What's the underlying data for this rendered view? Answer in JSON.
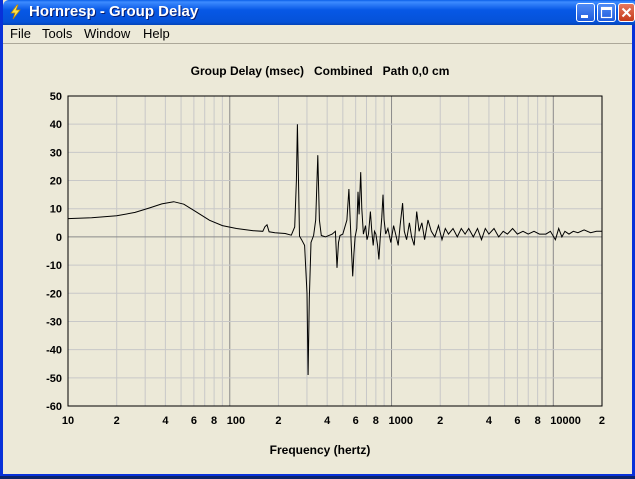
{
  "window": {
    "title": "Hornresp - Group Delay"
  },
  "menu": {
    "items": [
      "File",
      "Tools",
      "Window",
      "Help"
    ]
  },
  "colors": {
    "titlebar": "#0554E0",
    "window_bg": "#ECE9D8",
    "plot_bg": "#FFFFFF",
    "trace": "#000000",
    "grid": "#C8C8C8"
  },
  "icons": {
    "app": "lightning-bolt-icon",
    "minimize": "minimize-icon",
    "maximize": "maximize-icon",
    "close": "close-icon"
  },
  "chart_data": {
    "type": "line",
    "title": "Group Delay (msec)   Combined   Path 0,0 cm",
    "xlabel": "Frequency (hertz)",
    "ylabel": "",
    "x_scale": "log",
    "xlim": [
      10,
      20000
    ],
    "ylim": [
      -60,
      50
    ],
    "grid": true,
    "y_ticks": [
      50,
      40,
      30,
      20,
      10,
      0,
      -10,
      -20,
      -30,
      -40,
      -50,
      -60
    ],
    "x_tick_labels": [
      {
        "x": 10,
        "label": "10"
      },
      {
        "x": 20,
        "label": "2"
      },
      {
        "x": 40,
        "label": "4"
      },
      {
        "x": 60,
        "label": "6"
      },
      {
        "x": 80,
        "label": "8"
      },
      {
        "x": 100,
        "label": "100"
      },
      {
        "x": 200,
        "label": "2"
      },
      {
        "x": 400,
        "label": "4"
      },
      {
        "x": 600,
        "label": "6"
      },
      {
        "x": 800,
        "label": "8"
      },
      {
        "x": 1000,
        "label": "1000"
      },
      {
        "x": 2000,
        "label": "2"
      },
      {
        "x": 4000,
        "label": "4"
      },
      {
        "x": 6000,
        "label": "6"
      },
      {
        "x": 8000,
        "label": "8"
      },
      {
        "x": 10000,
        "label": "10000"
      },
      {
        "x": 20000,
        "label": "2"
      }
    ],
    "series": [
      {
        "points": [
          [
            10,
            6.5
          ],
          [
            14,
            6.8
          ],
          [
            20,
            7.5
          ],
          [
            26,
            8.7
          ],
          [
            32,
            10.3
          ],
          [
            38,
            11.7
          ],
          [
            45,
            12.5
          ],
          [
            52,
            11.6
          ],
          [
            60,
            9.4
          ],
          [
            75,
            5.9
          ],
          [
            90,
            4.0
          ],
          [
            110,
            3.0
          ],
          [
            140,
            2.2
          ],
          [
            160,
            2.0
          ],
          [
            165,
            3.6
          ],
          [
            170,
            4.3
          ],
          [
            175,
            1.8
          ],
          [
            190,
            1.5
          ],
          [
            220,
            1.2
          ],
          [
            240,
            0.6
          ],
          [
            252,
            3.5
          ],
          [
            258,
            20
          ],
          [
            262,
            40
          ],
          [
            266,
            20
          ],
          [
            270,
            0.3
          ],
          [
            278,
            -1
          ],
          [
            290,
            -3
          ],
          [
            300,
            -20
          ],
          [
            305,
            -49
          ],
          [
            310,
            -22
          ],
          [
            318,
            -2
          ],
          [
            330,
            0.5
          ],
          [
            340,
            6
          ],
          [
            350,
            29
          ],
          [
            358,
            6
          ],
          [
            368,
            0.5
          ],
          [
            390,
            0
          ],
          [
            430,
            1
          ],
          [
            450,
            2
          ],
          [
            460,
            -11
          ],
          [
            470,
            -2
          ],
          [
            480,
            0.5
          ],
          [
            500,
            1
          ],
          [
            530,
            6
          ],
          [
            545,
            17
          ],
          [
            555,
            6
          ],
          [
            565,
            -4
          ],
          [
            575,
            -14
          ],
          [
            585,
            -6
          ],
          [
            595,
            0
          ],
          [
            610,
            3
          ],
          [
            620,
            16
          ],
          [
            630,
            8
          ],
          [
            645,
            23
          ],
          [
            655,
            10
          ],
          [
            670,
            1
          ],
          [
            690,
            4
          ],
          [
            705,
            -1
          ],
          [
            720,
            1
          ],
          [
            740,
            9
          ],
          [
            755,
            2
          ],
          [
            770,
            -3
          ],
          [
            785,
            2
          ],
          [
            800,
            1
          ],
          [
            820,
            -3
          ],
          [
            835,
            -8
          ],
          [
            850,
            -1
          ],
          [
            870,
            7
          ],
          [
            885,
            15
          ],
          [
            900,
            6
          ],
          [
            920,
            1
          ],
          [
            950,
            3
          ],
          [
            990,
            -2
          ],
          [
            1030,
            4
          ],
          [
            1070,
            0
          ],
          [
            1100,
            -3
          ],
          [
            1130,
            4
          ],
          [
            1170,
            12
          ],
          [
            1200,
            2
          ],
          [
            1240,
            -1
          ],
          [
            1290,
            5
          ],
          [
            1330,
            0
          ],
          [
            1380,
            -3
          ],
          [
            1430,
            9
          ],
          [
            1480,
            2
          ],
          [
            1540,
            5
          ],
          [
            1600,
            -1
          ],
          [
            1680,
            6
          ],
          [
            1760,
            2
          ],
          [
            1850,
            0
          ],
          [
            1950,
            4
          ],
          [
            2050,
            -1
          ],
          [
            2150,
            3
          ],
          [
            2250,
            1
          ],
          [
            2400,
            3
          ],
          [
            2550,
            0
          ],
          [
            2700,
            3
          ],
          [
            2850,
            1
          ],
          [
            3000,
            3
          ],
          [
            3200,
            0
          ],
          [
            3400,
            3
          ],
          [
            3600,
            -1
          ],
          [
            3800,
            3
          ],
          [
            4000,
            1
          ],
          [
            4300,
            3
          ],
          [
            4600,
            0
          ],
          [
            4900,
            2
          ],
          [
            5200,
            1
          ],
          [
            5600,
            3
          ],
          [
            6000,
            1
          ],
          [
            6500,
            2
          ],
          [
            7000,
            1
          ],
          [
            7600,
            2
          ],
          [
            8200,
            1
          ],
          [
            9000,
            1
          ],
          [
            9600,
            2
          ],
          [
            10300,
            -1
          ],
          [
            10800,
            3
          ],
          [
            11300,
            0
          ],
          [
            11800,
            2
          ],
          [
            12500,
            1
          ],
          [
            13300,
            2
          ],
          [
            14200,
            1.5
          ],
          [
            15500,
            2.5
          ],
          [
            17000,
            1.5
          ],
          [
            18500,
            2
          ],
          [
            20000,
            2
          ]
        ]
      }
    ]
  }
}
